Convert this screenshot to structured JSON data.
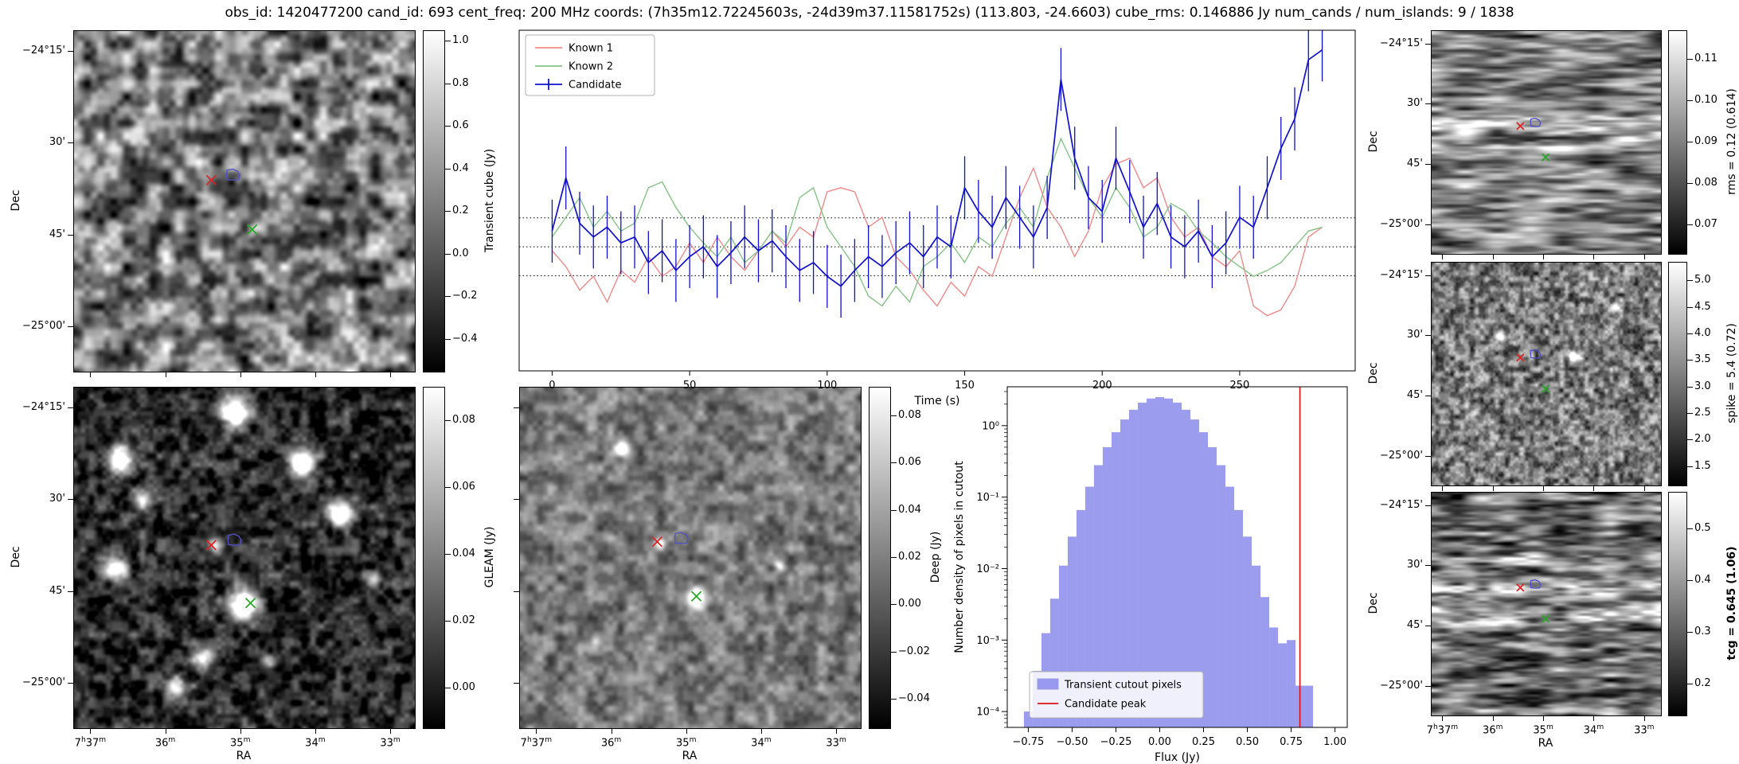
{
  "title": "obs_id: 1420477200 cand_id: 693 cent_freq: 200 MHz coords: (7h35m12.72245603s, -24d39m37.11581752s) (113.803, -24.6603) cube_rms: 0.146886 Jy num_cands / num_islands: 9 / 1838",
  "axes": {
    "dec_label": "Dec",
    "ra_label": "RA",
    "dec_ticks": [
      "−24°15'",
      "30'",
      "45'",
      "−25°00'"
    ],
    "ra_ticks": [
      "7h37m",
      "36m",
      "35m",
      "34m",
      "33m"
    ]
  },
  "image_panels": [
    {
      "id": "transient",
      "colorbar": {
        "label": "Transient cube (Jy)",
        "bold": false,
        "vmin": -0.55,
        "vmax": 1.05,
        "tick_vals": [
          1.0,
          0.8,
          0.6,
          0.4,
          0.2,
          0.0,
          -0.2,
          -0.4
        ],
        "tick_labels": [
          "1.0",
          "0.8",
          "0.6",
          "0.4",
          "0.2",
          "0.0",
          "−0.2",
          "−0.4"
        ]
      },
      "axes": {
        "dec_labels": true,
        "ra_labels": false,
        "dec_title": true,
        "ra_title": false
      },
      "markers": {
        "red_x": [
          0.405,
          0.44
        ],
        "contour": [
          0.468,
          0.425
        ],
        "green_x": [
          0.525,
          0.585
        ]
      },
      "marker_size": 6,
      "texture": {
        "seed": 11,
        "grid": [
          26,
          26
        ],
        "base": 0.5,
        "amp": 0.4
      }
    },
    {
      "id": "gleam",
      "colorbar": {
        "label": "GLEAM (Jy)",
        "bold": false,
        "vmin": -0.012,
        "vmax": 0.09,
        "tick_vals": [
          0.08,
          0.06,
          0.04,
          0.02,
          0.0
        ],
        "tick_labels": [
          "0.08",
          "0.06",
          "0.04",
          "0.02",
          "0.00"
        ]
      },
      "axes": {
        "dec_labels": true,
        "ra_labels": true,
        "dec_title": true,
        "ra_title": true
      },
      "markers": {
        "red_x": [
          0.405,
          0.465
        ],
        "contour": [
          0.472,
          0.45
        ],
        "green_x": [
          0.52,
          0.635
        ]
      },
      "marker_size": 6,
      "texture": {
        "seed": 22,
        "grid": [
          40,
          40
        ],
        "base": 0.17,
        "amp": 0.24,
        "sources": [
          [
            0.47,
            0.07,
            0.03,
            1.4
          ],
          [
            0.13,
            0.21,
            0.026,
            1.2
          ],
          [
            0.67,
            0.22,
            0.026,
            1.3
          ],
          [
            0.2,
            0.33,
            0.02,
            0.8
          ],
          [
            0.78,
            0.37,
            0.024,
            1.2
          ],
          [
            0.12,
            0.53,
            0.024,
            1.1
          ],
          [
            0.5,
            0.635,
            0.03,
            1.5
          ],
          [
            0.41,
            0.465,
            0.016,
            0.7
          ],
          [
            0.38,
            0.79,
            0.02,
            0.9
          ],
          [
            0.3,
            0.88,
            0.02,
            0.8
          ],
          [
            0.88,
            0.56,
            0.016,
            0.6
          ],
          [
            0.57,
            0.8,
            0.016,
            0.6
          ]
        ]
      }
    },
    {
      "id": "deep",
      "colorbar": {
        "label": "Deep (Jy)",
        "bold": false,
        "vmin": -0.052,
        "vmax": 0.092,
        "tick_vals": [
          0.08,
          0.06,
          0.04,
          0.02,
          0.0,
          -0.02,
          -0.04
        ],
        "tick_labels": [
          "0.08",
          "0.06",
          "0.04",
          "0.02",
          "0.00",
          "−0.02",
          "−0.04"
        ]
      },
      "axes": {
        "dec_labels": false,
        "ra_labels": true,
        "dec_title": false,
        "ra_title": true
      },
      "markers": {
        "red_x": [
          0.405,
          0.455
        ],
        "contour": [
          0.475,
          0.445
        ],
        "green_x": [
          0.52,
          0.615
        ]
      },
      "marker_size": 6,
      "texture": {
        "seed": 33,
        "grid": [
          34,
          34
        ],
        "base": 0.47,
        "amp": 0.2,
        "sources": [
          [
            0.3,
            0.18,
            0.016,
            0.9
          ],
          [
            0.52,
            0.615,
            0.018,
            1.0
          ],
          [
            0.41,
            0.455,
            0.012,
            0.5
          ],
          [
            0.76,
            0.52,
            0.01,
            0.4
          ],
          [
            0.22,
            0.74,
            0.01,
            0.35
          ]
        ]
      }
    },
    {
      "id": "rms",
      "colorbar": {
        "label": "rms = 0.12 (0.614)",
        "bold": false,
        "vmin": 0.063,
        "vmax": 0.117,
        "tick_vals": [
          0.11,
          0.1,
          0.09,
          0.08,
          0.07
        ],
        "tick_labels": [
          "0.11",
          "0.10",
          "0.09",
          "0.08",
          "0.07"
        ]
      },
      "axes": {
        "dec_labels": true,
        "ra_labels": false,
        "dec_title": true,
        "ra_title": false
      },
      "markers": {
        "red_x": [
          0.39,
          0.43
        ],
        "contour": [
          0.455,
          0.415
        ],
        "green_x": [
          0.5,
          0.57
        ]
      },
      "marker_size": 4.5,
      "texture": {
        "seed": 44,
        "grid": [
          7,
          46
        ],
        "base": 0.5,
        "amp": 0.34,
        "bands": [
          [
            0.42,
            0.03,
            0.35
          ],
          [
            0.52,
            0.02,
            0.2
          ]
        ]
      }
    },
    {
      "id": "spike",
      "colorbar": {
        "label": "spike = 5.4 (0.72)",
        "bold": false,
        "vmin": 1.15,
        "vmax": 5.35,
        "tick_vals": [
          5.0,
          4.5,
          4.0,
          3.5,
          3.0,
          2.5,
          2.0,
          1.5
        ],
        "tick_labels": [
          "5.0",
          "4.5",
          "4.0",
          "3.5",
          "3.0",
          "2.5",
          "2.0",
          "1.5"
        ]
      },
      "axes": {
        "dec_labels": true,
        "ra_labels": false,
        "dec_title": true,
        "ra_title": false
      },
      "markers": {
        "red_x": [
          0.39,
          0.43
        ],
        "contour": [
          0.455,
          0.415
        ],
        "green_x": [
          0.5,
          0.57
        ]
      },
      "marker_size": 4.5,
      "texture": {
        "seed": 55,
        "grid": [
          46,
          42
        ],
        "base": 0.48,
        "amp": 0.3,
        "sources": [
          [
            0.3,
            0.33,
            0.018,
            0.6
          ],
          [
            0.62,
            0.42,
            0.016,
            0.7
          ],
          [
            0.18,
            0.68,
            0.016,
            0.5
          ],
          [
            0.8,
            0.2,
            0.014,
            0.5
          ]
        ]
      }
    },
    {
      "id": "tcg",
      "colorbar": {
        "label": "tcg = 0.645 (1.06)",
        "bold": true,
        "vmin": 0.14,
        "vmax": 0.57,
        "tick_vals": [
          0.5,
          0.4,
          0.3,
          0.2
        ],
        "tick_labels": [
          "0.5",
          "0.4",
          "0.3",
          "0.2"
        ]
      },
      "axes": {
        "dec_labels": true,
        "ra_labels": true,
        "dec_title": true,
        "ra_title": true
      },
      "markers": {
        "red_x": [
          0.39,
          0.43
        ],
        "contour": [
          0.455,
          0.415
        ],
        "green_x": [
          0.5,
          0.57
        ]
      },
      "marker_size": 4.5,
      "texture": {
        "seed": 66,
        "grid": [
          9,
          44
        ],
        "base": 0.45,
        "amp": 0.36,
        "bands": [
          [
            0.43,
            0.025,
            0.5
          ],
          [
            0.55,
            0.03,
            0.35
          ],
          [
            0.3,
            0.02,
            0.2
          ]
        ]
      }
    }
  ],
  "chart_data": [
    {
      "type": "line",
      "name": "lightcurve",
      "xlabel": "Time (s)",
      "x_start": 0,
      "x_step": 5,
      "n_points": 57,
      "xticks": [
        0,
        50,
        100,
        150,
        200,
        250
      ],
      "xlim": [
        -12,
        292
      ],
      "ylim": [
        -0.63,
        1.1
      ],
      "dotted_lines": [
        0.146886,
        0.0,
        -0.146886
      ],
      "legend_position": "upper left",
      "series": [
        {
          "name": "Known 1",
          "color": "#f08a8a",
          "values": [
            -0.02,
            -0.1,
            -0.22,
            -0.15,
            -0.28,
            -0.12,
            -0.18,
            -0.05,
            -0.15,
            -0.1,
            0.02,
            -0.08,
            0.05,
            -0.05,
            -0.12,
            -0.02,
            0.08,
            0.0,
            0.1,
            0.05,
            0.28,
            0.3,
            0.28,
            0.1,
            0.15,
            -0.05,
            -0.12,
            -0.22,
            -0.3,
            -0.18,
            -0.25,
            -0.1,
            -0.15,
            0.05,
            0.25,
            0.4,
            0.2,
            0.1,
            -0.05,
            0.08,
            0.3,
            0.42,
            0.45,
            0.3,
            0.35,
            0.15,
            0.05,
            0.1,
            -0.05,
            -0.1,
            -0.02,
            -0.3,
            -0.35,
            -0.32,
            -0.2,
            0.05,
            0.1
          ]
        },
        {
          "name": "Known 2",
          "color": "#86c386",
          "values": [
            0.05,
            0.15,
            0.25,
            0.1,
            0.18,
            0.08,
            0.12,
            0.3,
            0.33,
            0.2,
            0.1,
            0.02,
            -0.05,
            0.05,
            -0.08,
            -0.02,
            0.08,
            0.02,
            0.25,
            0.3,
            0.1,
            0.0,
            -0.1,
            -0.25,
            -0.3,
            -0.2,
            -0.28,
            -0.1,
            -0.05,
            0.02,
            -0.08,
            0.05,
            0.0,
            0.12,
            0.2,
            0.1,
            0.35,
            0.55,
            0.4,
            0.25,
            0.15,
            0.3,
            0.2,
            0.05,
            0.1,
            0.22,
            0.18,
            0.08,
            0.02,
            -0.05,
            -0.1,
            -0.15,
            -0.12,
            -0.08,
            0.0,
            0.08,
            0.1
          ]
        },
        {
          "name": "Candidate",
          "color": "#1111cc",
          "yerr": 0.16,
          "values": [
            0.08,
            0.35,
            0.12,
            0.05,
            0.1,
            0.02,
            0.05,
            -0.08,
            -0.02,
            -0.12,
            -0.05,
            0.0,
            -0.1,
            -0.03,
            0.05,
            -0.02,
            0.03,
            -0.05,
            -0.12,
            -0.08,
            -0.15,
            -0.2,
            -0.12,
            -0.05,
            -0.1,
            -0.03,
            0.02,
            -0.05,
            0.05,
            0.0,
            0.3,
            0.18,
            0.1,
            0.25,
            0.15,
            0.05,
            0.2,
            0.85,
            0.45,
            0.25,
            0.18,
            0.45,
            0.28,
            0.1,
            0.22,
            0.05,
            0.0,
            0.08,
            -0.05,
            0.02,
            0.15,
            0.1,
            0.3,
            0.5,
            0.65,
            0.95,
            1.0
          ]
        }
      ]
    },
    {
      "type": "histogram",
      "name": "flux-histogram",
      "xlabel": "Flux (Jy)",
      "ylabel": "Number density of pixels in cutout",
      "bar_color": "#7b7bea",
      "bar_alpha": 0.75,
      "bin_start": -0.775,
      "bin_width": 0.05,
      "densities": [
        0.0001,
        0.00037,
        0.00125,
        0.0038,
        0.011,
        0.028,
        0.066,
        0.14,
        0.28,
        0.5,
        0.81,
        1.22,
        1.67,
        2.1,
        2.4,
        2.51,
        2.4,
        2.1,
        1.67,
        1.22,
        0.81,
        0.5,
        0.28,
        0.14,
        0.066,
        0.028,
        0.011,
        0.004,
        0.0015,
        0.0009,
        0.001,
        0.00023,
        0.00023
      ],
      "candidate_peak": 0.8,
      "peak_color": "#dd1111",
      "xlim": [
        -0.87,
        1.07
      ],
      "ylim": [
        6e-05,
        3.5
      ],
      "xticks": [
        {
          "v": -0.75,
          "label": "−0.75"
        },
        {
          "v": -0.5,
          "label": "−0.50"
        },
        {
          "v": -0.25,
          "label": "−0.25"
        },
        {
          "v": 0.0,
          "label": "0.00"
        },
        {
          "v": 0.25,
          "label": "0.25"
        },
        {
          "v": 0.5,
          "label": "0.50"
        },
        {
          "v": 0.75,
          "label": "0.75"
        },
        {
          "v": 1.0,
          "label": "1.00"
        }
      ],
      "yticks": [
        {
          "v": 1,
          "label": "10⁰"
        },
        {
          "v": 0.1,
          "label": "10⁻¹"
        },
        {
          "v": 0.01,
          "label": "10⁻²"
        },
        {
          "v": 0.001,
          "label": "10⁻³"
        },
        {
          "v": 0.0001,
          "label": "10⁻⁴"
        }
      ],
      "legend": [
        {
          "label": "Transient cutout pixels",
          "type": "patch"
        },
        {
          "label": "Candidate peak",
          "type": "line"
        }
      ],
      "legend_position": "lower left"
    }
  ]
}
